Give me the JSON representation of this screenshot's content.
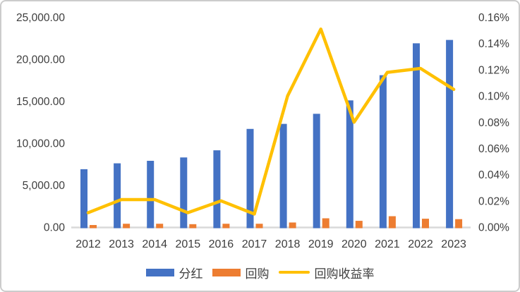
{
  "chart_data": {
    "type": "combo (bar + line)",
    "title": "",
    "categories": [
      "2012",
      "2013",
      "2014",
      "2015",
      "2016",
      "2017",
      "2018",
      "2019",
      "2020",
      "2021",
      "2022",
      "2023"
    ],
    "series": [
      {
        "name": "分红",
        "type": "bar",
        "axis": "left",
        "color": "#4472C4",
        "values": [
          6900,
          7600,
          7900,
          8300,
          9150,
          11700,
          12300,
          13500,
          15100,
          18100,
          21900,
          22300
        ]
      },
      {
        "name": "回购",
        "type": "bar",
        "axis": "left",
        "color": "#ED7D31",
        "values": [
          250,
          400,
          400,
          350,
          400,
          400,
          550,
          1050,
          750,
          1300,
          1000,
          950
        ]
      },
      {
        "name": "回购收益率",
        "type": "line",
        "axis": "right",
        "color": "#FFC000",
        "values_percent": [
          0.011,
          0.021,
          0.021,
          0.011,
          0.02,
          0.01,
          0.1,
          0.151,
          0.08,
          0.118,
          0.121,
          0.105
        ]
      }
    ],
    "left_axis": {
      "min": 0,
      "max": 25000,
      "step": 5000,
      "ticks": [
        "25,000.00",
        "20,000.00",
        "15,000.00",
        "10,000.00",
        "5,000.00",
        "0.00"
      ]
    },
    "right_axis": {
      "min": "0.00%",
      "max": "0.16%",
      "step": "0.02%",
      "ticks": [
        "0.16%",
        "0.14%",
        "0.12%",
        "0.10%",
        "0.08%",
        "0.06%",
        "0.04%",
        "0.02%",
        "0.00%"
      ]
    },
    "legend_position": "bottom",
    "grid": false
  },
  "colors": {
    "axis_line": "#D9D9D9",
    "text": "#3D3D3D",
    "border": "#CCCCCC",
    "background": "#FFFFFF"
  }
}
